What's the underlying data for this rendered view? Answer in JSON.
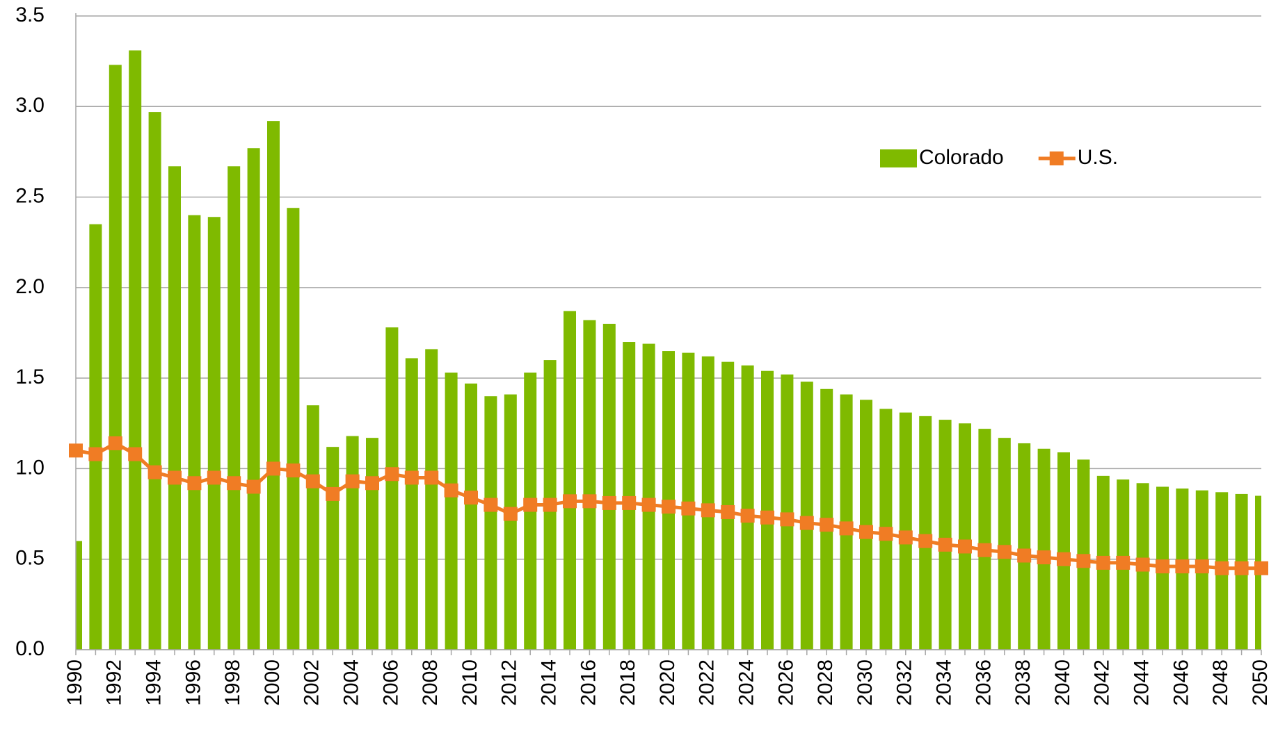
{
  "chart_data": {
    "type": "bar_line",
    "categories": [
      "1990",
      null,
      "1992",
      null,
      "1994",
      null,
      "1996",
      null,
      "1998",
      null,
      "2000",
      null,
      "2002",
      null,
      "2004",
      null,
      "2006",
      null,
      "2008",
      null,
      "2010",
      null,
      "2012",
      null,
      "2014",
      null,
      "2016",
      null,
      "2018",
      null,
      "2020",
      null,
      "2022",
      null,
      "2024",
      null,
      "2026",
      null,
      "2028",
      null,
      "2030",
      null,
      "2032",
      null,
      "2034",
      null,
      "2036",
      null,
      "2038",
      null,
      "2040",
      null,
      "2042",
      null,
      "2044",
      null,
      "2046",
      null,
      "2048",
      null,
      "2050"
    ],
    "series": [
      {
        "name": "Colorado",
        "type": "bar",
        "color": "#7fba00",
        "values": [
          0.6,
          2.35,
          3.23,
          3.31,
          2.97,
          2.67,
          2.4,
          2.39,
          2.67,
          2.77,
          2.92,
          2.44,
          1.35,
          1.12,
          1.18,
          1.17,
          1.78,
          1.61,
          1.66,
          1.53,
          1.47,
          1.4,
          1.41,
          1.53,
          1.6,
          1.87,
          1.82,
          1.8,
          1.7,
          1.69,
          1.65,
          1.64,
          1.62,
          1.59,
          1.57,
          1.54,
          1.52,
          1.48,
          1.44,
          1.41,
          1.38,
          1.33,
          1.31,
          1.29,
          1.27,
          1.25,
          1.22,
          1.17,
          1.14,
          1.11,
          1.09,
          1.05,
          0.96,
          0.94,
          0.92,
          0.9,
          0.89,
          0.88,
          0.87,
          0.86,
          0.85
        ]
      },
      {
        "name": "U.S.",
        "type": "line",
        "color": "#f07c24",
        "values": [
          1.1,
          1.08,
          1.14,
          1.08,
          0.98,
          0.95,
          0.92,
          0.95,
          0.92,
          0.9,
          1.0,
          0.99,
          0.93,
          0.86,
          0.93,
          0.92,
          0.97,
          0.95,
          0.95,
          0.88,
          0.84,
          0.8,
          0.75,
          0.8,
          0.8,
          0.82,
          0.82,
          0.81,
          0.81,
          0.8,
          0.79,
          0.78,
          0.77,
          0.76,
          0.74,
          0.73,
          0.72,
          0.7,
          0.69,
          0.67,
          0.65,
          0.64,
          0.62,
          0.6,
          0.58,
          0.57,
          0.55,
          0.54,
          0.52,
          0.51,
          0.5,
          0.49,
          0.48,
          0.48,
          0.47,
          0.46,
          0.46,
          0.46,
          0.45,
          0.45,
          0.45
        ]
      }
    ],
    "ylim": [
      0,
      3.5
    ],
    "yticks": [
      {
        "value": 0,
        "label": "0.0"
      },
      0.5,
      {
        "value": 1,
        "label": "1.0"
      },
      1.5,
      {
        "value": 2,
        "label": "2.0"
      },
      2.5,
      {
        "value": 3,
        "label": "3.0"
      },
      3.5
    ],
    "grid": true
  }
}
